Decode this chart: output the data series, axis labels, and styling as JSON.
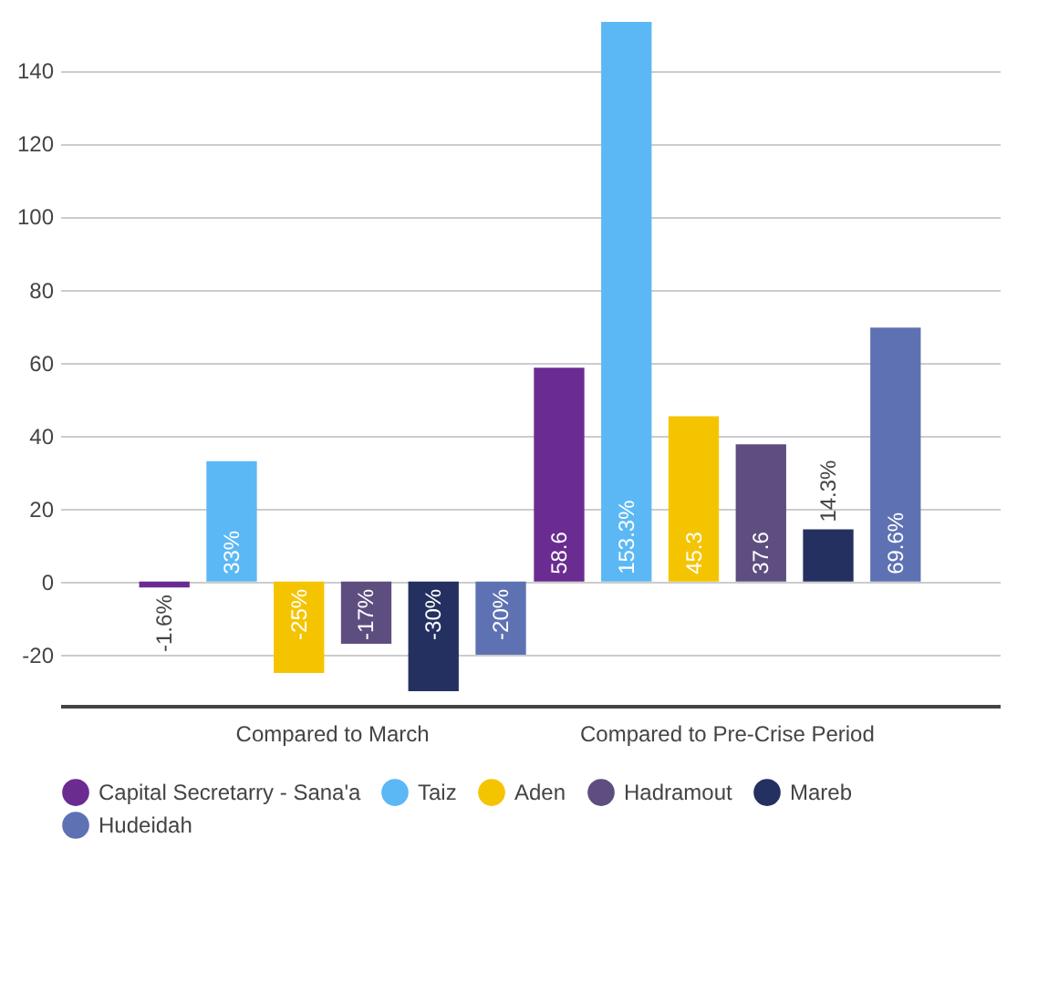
{
  "chart_data": {
    "type": "bar",
    "categories": [
      "Compared to March",
      "Compared to Pre-Crise Period"
    ],
    "series": [
      {
        "name": "Capital Secretarry - Sana'a",
        "color": "#6a2c91",
        "values": [
          -1.6,
          58.6
        ],
        "value_labels": [
          "-1.6%",
          "58.6"
        ]
      },
      {
        "name": "Taiz",
        "color": "#5bb8f5",
        "values": [
          33,
          153.3
        ],
        "value_labels": [
          "33%",
          "153.3%"
        ]
      },
      {
        "name": "Aden",
        "color": "#f5c400",
        "values": [
          -25,
          45.3
        ],
        "value_labels": [
          "-25%",
          "45.3"
        ]
      },
      {
        "name": "Hadramout",
        "color": "#5e4e80",
        "values": [
          -17,
          37.6
        ],
        "value_labels": [
          "-17%",
          "37.6"
        ]
      },
      {
        "name": "Mareb",
        "color": "#243060",
        "values": [
          -30,
          14.3
        ],
        "value_labels": [
          "-30%",
          "14.3%"
        ]
      },
      {
        "name": "Hudeidah",
        "color": "#5e72b3",
        "values": [
          -20,
          69.6
        ],
        "value_labels": [
          "-20%",
          "69.6%"
        ]
      }
    ],
    "ylim": [
      -34,
      153.3
    ],
    "yticks": [
      -20,
      0,
      20,
      40,
      60,
      80,
      100,
      120,
      140
    ],
    "grid": "y",
    "legend": "bottom"
  }
}
